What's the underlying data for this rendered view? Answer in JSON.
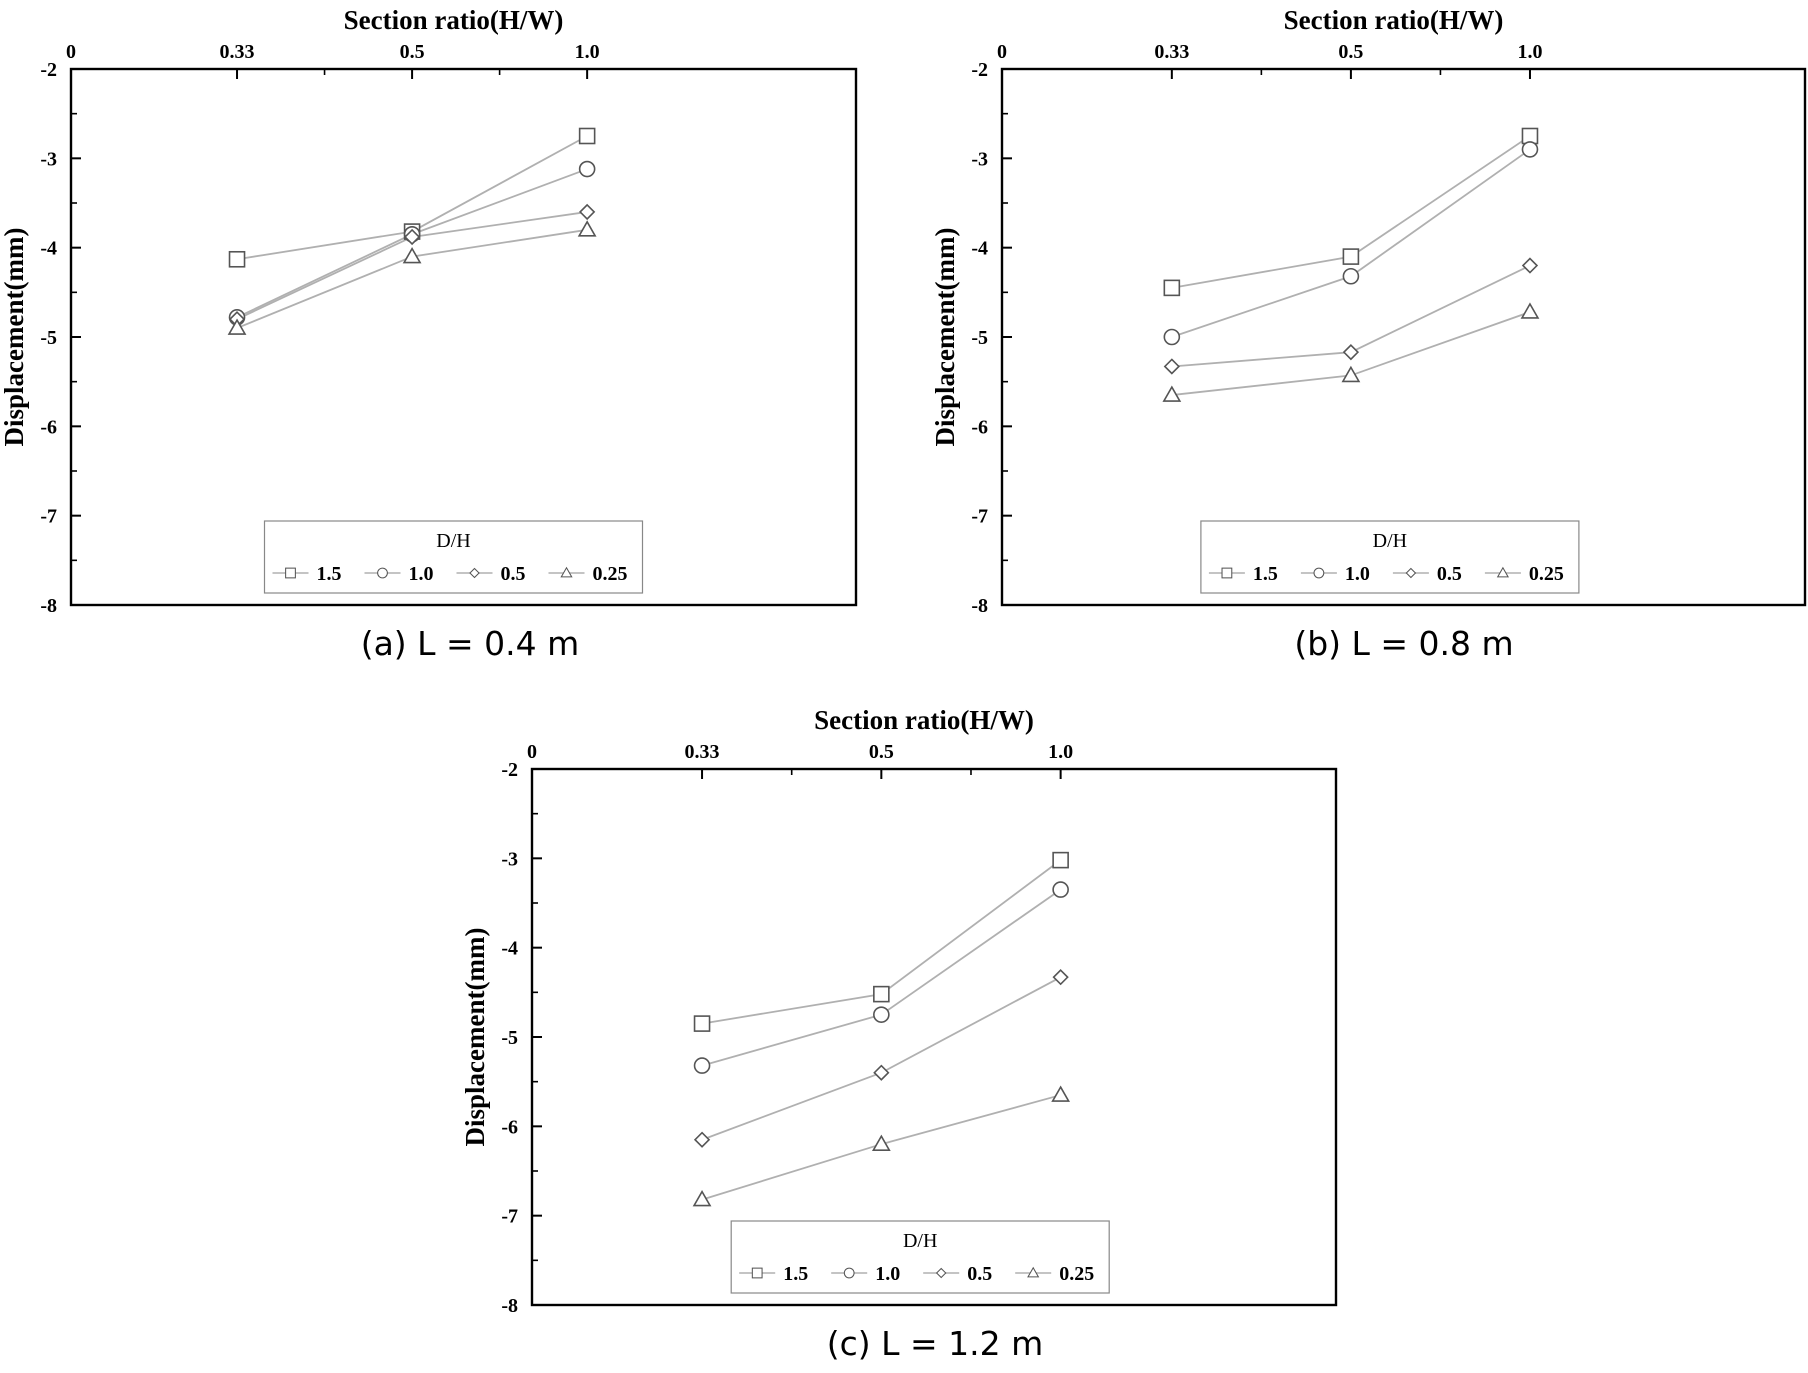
{
  "chart_data": [
    {
      "type": "line",
      "caption": "(a) L = 0.4 m",
      "xlabel": "Section ratio(H/W)",
      "ylabel": "Displacement(mm)",
      "x_tick_labels": [
        "0",
        "0.33",
        "0.5",
        "1.0"
      ],
      "y_tick_labels": [
        "-2",
        "-3",
        "-4",
        "-5",
        "-6",
        "-7",
        "-8"
      ],
      "ylim": [
        -8,
        -2
      ],
      "categories": [
        "0.33",
        "0.5",
        "1.0"
      ],
      "legend": {
        "title": "D/H",
        "placement": "bottom-center"
      },
      "series": [
        {
          "name": "1.5",
          "marker": "square",
          "values": [
            -4.13,
            -3.82,
            -2.75
          ]
        },
        {
          "name": "1.0",
          "marker": "circle",
          "values": [
            -4.78,
            -3.85,
            -3.12
          ]
        },
        {
          "name": "0.5",
          "marker": "diamond",
          "values": [
            -4.8,
            -3.88,
            -3.6
          ]
        },
        {
          "name": "0.25",
          "marker": "triangle",
          "values": [
            -4.9,
            -4.1,
            -3.8
          ]
        }
      ]
    },
    {
      "type": "line",
      "caption": "(b) L = 0.8 m",
      "xlabel": "Section ratio(H/W)",
      "ylabel": "Displacement(mm)",
      "x_tick_labels": [
        "0",
        "0.33",
        "0.5",
        "1.0"
      ],
      "y_tick_labels": [
        "-2",
        "-3",
        "-4",
        "-5",
        "-6",
        "-7",
        "-8"
      ],
      "ylim": [
        -8,
        -2
      ],
      "categories": [
        "0.33",
        "0.5",
        "1.0"
      ],
      "legend": {
        "title": "D/H",
        "placement": "bottom-center"
      },
      "series": [
        {
          "name": "1.5",
          "marker": "square",
          "values": [
            -4.45,
            -4.1,
            -2.75
          ]
        },
        {
          "name": "1.0",
          "marker": "circle",
          "values": [
            -5.0,
            -4.32,
            -2.9
          ]
        },
        {
          "name": "0.5",
          "marker": "diamond",
          "values": [
            -5.33,
            -5.17,
            -4.2
          ]
        },
        {
          "name": "0.25",
          "marker": "triangle",
          "values": [
            -5.65,
            -5.43,
            -4.72
          ]
        }
      ]
    },
    {
      "type": "line",
      "caption": "(c) L = 1.2 m",
      "xlabel": "Section ratio(H/W)",
      "ylabel": "Displacement(mm)",
      "x_tick_labels": [
        "0",
        "0.33",
        "0.5",
        "1.0"
      ],
      "y_tick_labels": [
        "-2",
        "-3",
        "-4",
        "-5",
        "-6",
        "-7",
        "-8"
      ],
      "ylim": [
        -8,
        -2
      ],
      "categories": [
        "0.33",
        "0.5",
        "1.0"
      ],
      "legend": {
        "title": "D/H",
        "placement": "bottom-center"
      },
      "series": [
        {
          "name": "1.5",
          "marker": "square",
          "values": [
            -4.85,
            -4.52,
            -3.02
          ]
        },
        {
          "name": "1.0",
          "marker": "circle",
          "values": [
            -5.32,
            -4.75,
            -3.35
          ]
        },
        {
          "name": "0.5",
          "marker": "diamond",
          "values": [
            -6.15,
            -5.4,
            -4.33
          ]
        },
        {
          "name": "0.25",
          "marker": "triangle",
          "values": [
            -6.82,
            -6.2,
            -5.65
          ]
        }
      ]
    }
  ],
  "colors": {
    "line": "#b0b0b0",
    "marker": "#555555",
    "axis": "#000000"
  }
}
